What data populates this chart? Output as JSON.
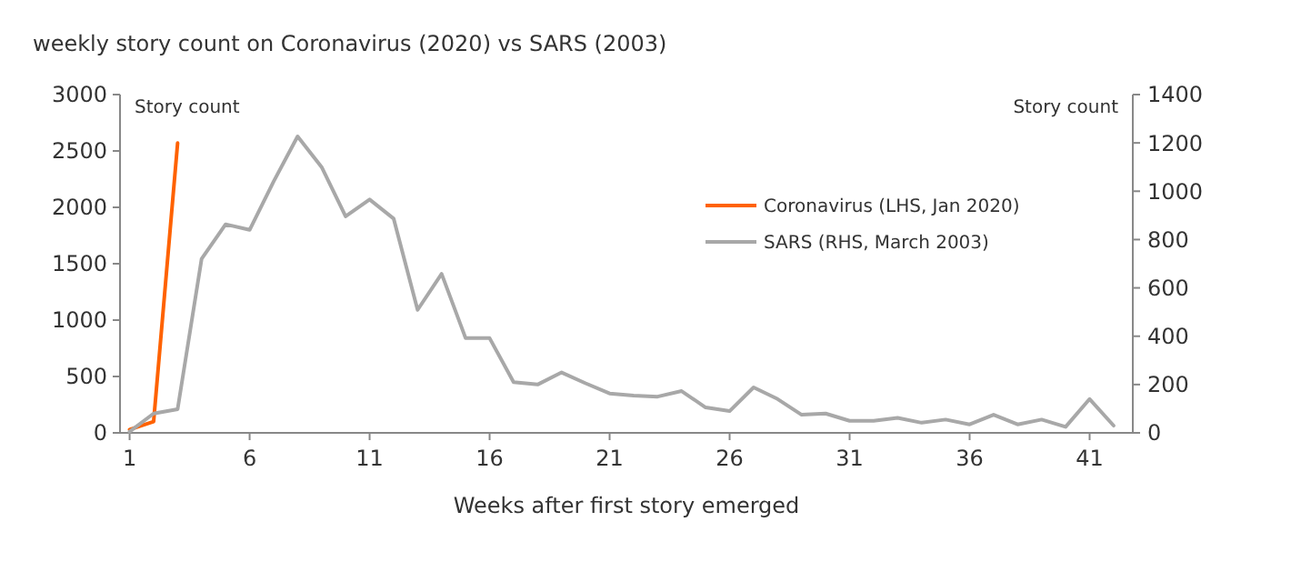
{
  "chart_data": {
    "type": "line",
    "title": "weekly story count on Coronavirus (2020) vs SARS (2003)",
    "xlabel": "Weeks after first story emerged",
    "ylabel": "Story count",
    "y2label": "Story count",
    "x": [
      1,
      2,
      3,
      4,
      5,
      6,
      7,
      8,
      9,
      10,
      11,
      12,
      13,
      14,
      15,
      16,
      17,
      18,
      19,
      20,
      21,
      22,
      23,
      24,
      25,
      26,
      27,
      28,
      29,
      30,
      31,
      32,
      33,
      34,
      35,
      36,
      37,
      38,
      39,
      40,
      41,
      42
    ],
    "xlim": [
      0.6,
      42.8
    ],
    "xticks": [
      1,
      6,
      11,
      16,
      21,
      26,
      31,
      36,
      41
    ],
    "ylim": [
      0,
      3000
    ],
    "yticks": [
      0,
      500,
      1000,
      1500,
      2000,
      2500,
      3000
    ],
    "y2lim": [
      0,
      1400
    ],
    "y2ticks": [
      0,
      200,
      400,
      600,
      800,
      1000,
      1200,
      1400
    ],
    "legend": "right",
    "grid": false,
    "series": [
      {
        "name": "Coronavirus (LHS, Jan 2020)",
        "color": "#ff6200",
        "x": [
          1,
          2,
          3
        ],
        "values": [
          30,
          100,
          2570
        ]
      },
      {
        "name": "SARS (RHS, March 2003)",
        "color": "#a8a8a8",
        "axis": "y2",
        "values": [
          5,
          80,
          98,
          720,
          863,
          840,
          1040,
          1227,
          1100,
          896,
          966,
          887,
          509,
          658,
          392,
          392,
          210,
          200,
          250,
          205,
          163,
          154,
          150,
          173,
          105,
          90,
          188,
          140,
          75,
          80,
          50,
          50,
          62,
          42,
          55,
          35,
          75,
          35,
          55,
          25,
          140,
          30
        ]
      }
    ]
  }
}
